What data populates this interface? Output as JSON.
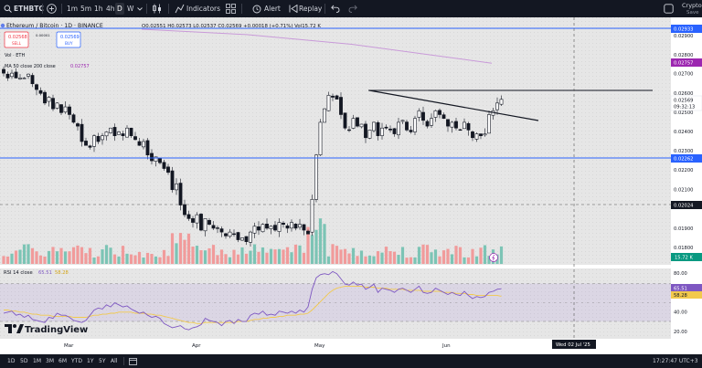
{
  "topbar": {
    "symbol": "ETHBTC",
    "intervals": [
      "1m",
      "5m",
      "1h",
      "4h",
      "D",
      "W"
    ],
    "active_interval": "D",
    "indicators_label": "Indicators",
    "alert_label": "Alert",
    "replay_label": "Replay",
    "account_label": "Crypto",
    "account_sub": "Save"
  },
  "legend": {
    "title": "Ethereum / Bitcoin · 1D · BINANCE",
    "ohlc": "O0.02551 H0.02573 L0.02537 C0.02569 +0.00018 (+0.71%) Vol15.72 K",
    "sell_price": "0.02568",
    "sell_label": "SELL",
    "spread": "0.00001",
    "buy_price": "0.02569",
    "buy_label": "BUY",
    "vol_label": "Vol · ETH",
    "ma_label": "MA 50 close 200 close",
    "ma_value": "0.02757"
  },
  "price_axis": {
    "ticks": [
      "0.02900",
      "0.02800",
      "0.02700",
      "0.02600",
      "0.02500",
      "0.02400",
      "0.02300",
      "0.02200",
      "0.02100",
      "0.01900",
      "0.01800"
    ],
    "tags": {
      "hline_top": "0.02933",
      "ma": "0.02757",
      "last_price": "0.02569",
      "countdown": "09:32:13",
      "hline_mid": "0.02262",
      "crosshair": "0.02024",
      "volume": "15.72 K"
    }
  },
  "rsi": {
    "label": "RSI 14 close",
    "v1": "65.51",
    "v2": "58.28",
    "ticks": [
      "80.00",
      "60.00",
      "40.00",
      "20.00"
    ],
    "tag1": "65.51",
    "tag2": "58.28"
  },
  "time_axis": {
    "labels": [
      "Mar",
      "Apr",
      "May",
      "Jun"
    ],
    "crosshair_date": "Wed 02 Jul '25"
  },
  "bottombar": {
    "ranges": [
      "1D",
      "5D",
      "1M",
      "3M",
      "6M",
      "YTD",
      "1Y",
      "5Y",
      "All"
    ],
    "clock": "17:27:47 UTC+3"
  },
  "logo": "TradingView",
  "chart_data": {
    "type": "candlestick",
    "title": "Ethereum / Bitcoin · 1D · BINANCE",
    "x_range": [
      "2025-02-17",
      "2025-07-03"
    ],
    "ylim": [
      0.0178,
      0.0296
    ],
    "candles_daily_close": [
      0.02705,
      0.0268,
      0.02705,
      0.0268,
      0.0268,
      0.0268,
      0.027,
      0.0265,
      0.0262,
      0.026,
      0.0255,
      0.0258,
      0.0252,
      0.0255,
      0.025,
      0.0253,
      0.0249,
      0.0245,
      0.0243,
      0.0235,
      0.0233,
      0.0232,
      0.0238,
      0.0235,
      0.0238,
      0.024,
      0.0242,
      0.0238,
      0.024,
      0.0238,
      0.0242,
      0.0238,
      0.0236,
      0.0233,
      0.0235,
      0.0228,
      0.0225,
      0.0227,
      0.0224,
      0.0221,
      0.0219,
      0.021,
      0.0213,
      0.0202,
      0.0197,
      0.0195,
      0.0193,
      0.0197,
      0.0189,
      0.0195,
      0.0192,
      0.019,
      0.019,
      0.0188,
      0.0186,
      0.0188,
      0.0187,
      0.0184,
      0.0185,
      0.0183,
      0.0188,
      0.0191,
      0.0189,
      0.0192,
      0.019,
      0.0191,
      0.0189,
      0.0193,
      0.0192,
      0.019,
      0.0193,
      0.019,
      0.0192,
      0.0189,
      0.0187,
      0.0205,
      0.0228,
      0.0245,
      0.0252,
      0.0259,
      0.0258,
      0.0257,
      0.0249,
      0.0242,
      0.0241,
      0.0247,
      0.0243,
      0.0244,
      0.0237,
      0.0241,
      0.0245,
      0.0238,
      0.0242,
      0.0242,
      0.0241,
      0.0239,
      0.0245,
      0.0246,
      0.0241,
      0.024,
      0.0247,
      0.0251,
      0.0246,
      0.0243,
      0.0247,
      0.0251,
      0.0249,
      0.0247,
      0.0243,
      0.0245,
      0.0242,
      0.0241,
      0.0245,
      0.0241,
      0.0237,
      0.0239,
      0.0238,
      0.0239,
      0.0249,
      0.0251,
      0.0255,
      0.02569
    ],
    "ma50_points": [
      [
        0.0,
        0.02933
      ],
      [
        0.3,
        0.02905
      ],
      [
        0.6,
        0.02855
      ],
      [
        1.0,
        0.02757
      ]
    ],
    "volume_k_max": 70,
    "rsi_ylim": [
      20,
      85
    ],
    "rsi_line1": [
      42,
      43,
      44,
      40,
      41,
      38,
      40,
      36,
      35,
      34,
      33,
      38,
      37,
      42,
      40,
      40,
      38,
      35,
      34,
      33,
      35,
      40,
      45,
      47,
      46,
      50,
      48,
      52,
      50,
      48,
      49,
      46,
      44,
      42,
      43,
      40,
      38,
      39,
      37,
      32,
      30,
      28,
      29,
      30,
      27,
      26,
      28,
      29,
      31,
      37,
      35,
      34,
      33,
      30,
      34,
      35,
      32,
      36,
      34,
      34,
      40,
      42,
      41,
      44,
      40,
      41,
      40,
      44,
      43,
      42,
      44,
      42,
      45,
      43,
      48,
      65,
      76,
      79,
      80,
      79,
      82,
      80,
      75,
      70,
      69,
      72,
      69,
      70,
      65,
      67,
      70,
      62,
      66,
      65,
      64,
      62,
      65,
      66,
      64,
      62,
      65,
      68,
      62,
      61,
      62,
      66,
      64,
      62,
      60,
      62,
      60,
      59,
      63,
      59,
      56,
      58,
      57,
      58,
      62,
      63,
      65,
      65.51
    ],
    "rsi_line2": [
      45,
      45,
      44,
      44,
      43,
      43,
      42,
      41,
      41,
      40,
      40,
      40,
      39,
      39,
      39,
      39,
      39,
      38,
      38,
      38,
      38,
      39,
      40,
      40,
      41,
      41,
      42,
      42,
      43,
      43,
      43,
      43,
      42,
      42,
      42,
      41,
      41,
      40,
      40,
      39,
      38,
      37,
      36,
      35,
      34,
      33,
      33,
      32,
      32,
      33,
      33,
      33,
      33,
      33,
      33,
      33,
      33,
      34,
      34,
      34,
      35,
      36,
      36,
      37,
      37,
      38,
      38,
      39,
      39,
      40,
      40,
      40,
      41,
      41,
      42,
      45,
      49,
      53,
      57,
      61,
      64,
      66,
      67,
      68,
      68,
      68,
      68,
      68,
      67,
      67,
      67,
      66,
      66,
      66,
      65,
      65,
      65,
      65,
      64,
      64,
      64,
      64,
      63,
      63,
      63,
      63,
      63,
      62,
      62,
      62,
      61,
      61,
      61,
      60,
      60,
      59,
      59,
      59,
      59,
      59,
      59,
      58.28
    ]
  }
}
